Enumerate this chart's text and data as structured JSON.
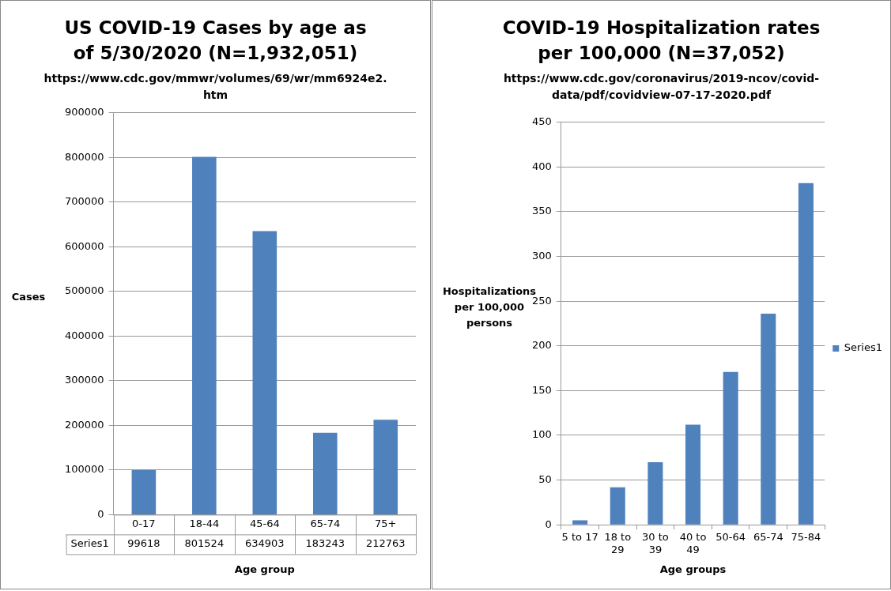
{
  "chart_data": [
    {
      "type": "bar",
      "title": "US COVID-19 Cases by age as of 5/30/2020 (N=1,932,051)",
      "subtitle": "https://www.cdc.gov/mmwr/volumes/69/wr/mm6924e2.htm",
      "xlabel": "Age group",
      "ylabel": "Cases",
      "categories": [
        "0-17",
        "18-44",
        "45-64",
        "65-74",
        "75+"
      ],
      "series": [
        {
          "name": "Series1",
          "color": "#4f81bd",
          "values": [
            99618,
            801524,
            634903,
            183243,
            212763
          ]
        }
      ],
      "ylim": [
        0,
        900000
      ],
      "yticks": [
        0,
        100000,
        200000,
        300000,
        400000,
        500000,
        600000,
        700000,
        800000,
        900000
      ],
      "grid": "y",
      "data_labels": true
    },
    {
      "type": "bar",
      "title": "COVID-19 Hospitalization rates per 100,000 (N=37,052)",
      "subtitle": "https://www.cdc.gov/coronavirus/2019-ncov/covid-data/pdf/covidview-07-17-2020.pdf",
      "xlabel": "Age groups",
      "ylabel": "Hospitalizations per 100,000 persons",
      "categories": [
        "5 to 17",
        "18 to 29",
        "30 to 39",
        "40 to 49",
        "50-64",
        "65-74",
        "75-84"
      ],
      "series": [
        {
          "name": "Series1",
          "color": "#4f81bd",
          "values": [
            5,
            42,
            70,
            112,
            171,
            236,
            382
          ]
        }
      ],
      "ylim": [
        0,
        450
      ],
      "yticks": [
        0,
        50,
        100,
        150,
        200,
        250,
        300,
        350,
        400,
        450
      ],
      "grid": "y",
      "legend": "right"
    }
  ]
}
